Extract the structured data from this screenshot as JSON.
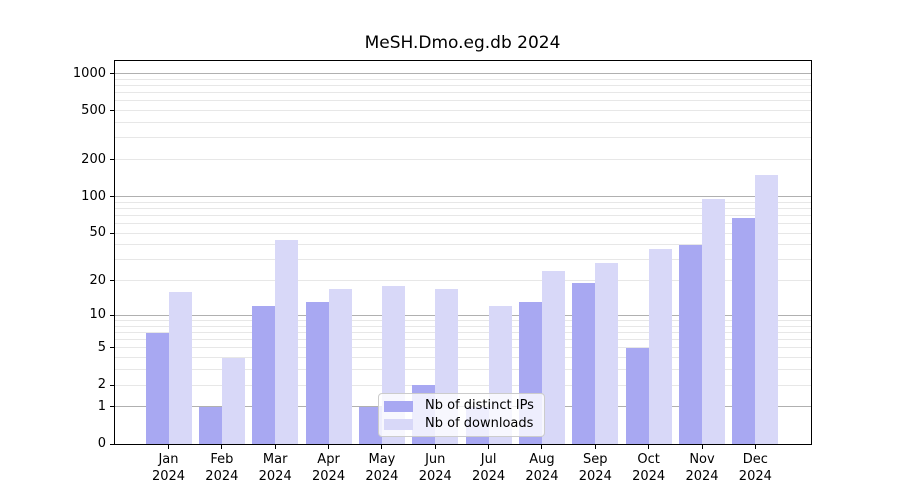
{
  "chart_data": {
    "type": "bar",
    "title": "MeSH.Dmo.eg.db 2024",
    "y_scale": "log1p",
    "grid": true,
    "legend_position": "lower-center-inside",
    "x_year": "2024",
    "categories": [
      "Jan",
      "Feb",
      "Mar",
      "Apr",
      "May",
      "Jun",
      "Jul",
      "Aug",
      "Sep",
      "Oct",
      "Nov",
      "Dec"
    ],
    "yticks": [
      0,
      1,
      2,
      5,
      10,
      20,
      50,
      100,
      200,
      500,
      1000
    ],
    "ylim": [
      0,
      1280
    ],
    "series": [
      {
        "name": "Nb of distinct IPs",
        "color": "#a8a8f2",
        "values": [
          7,
          1,
          12,
          13,
          1,
          2,
          1,
          13,
          19,
          5,
          40,
          67
        ]
      },
      {
        "name": "Nb of downloads",
        "color": "#d8d8f8",
        "values": [
          16,
          4,
          44,
          17,
          18,
          17,
          12,
          24,
          28,
          37,
          96,
          149
        ]
      }
    ],
    "colors": {
      "major_gridline": "#b0b0b0",
      "minor_gridline": "#e7e7e7",
      "axis": "#000000",
      "legend_border": "#cccccc"
    }
  }
}
